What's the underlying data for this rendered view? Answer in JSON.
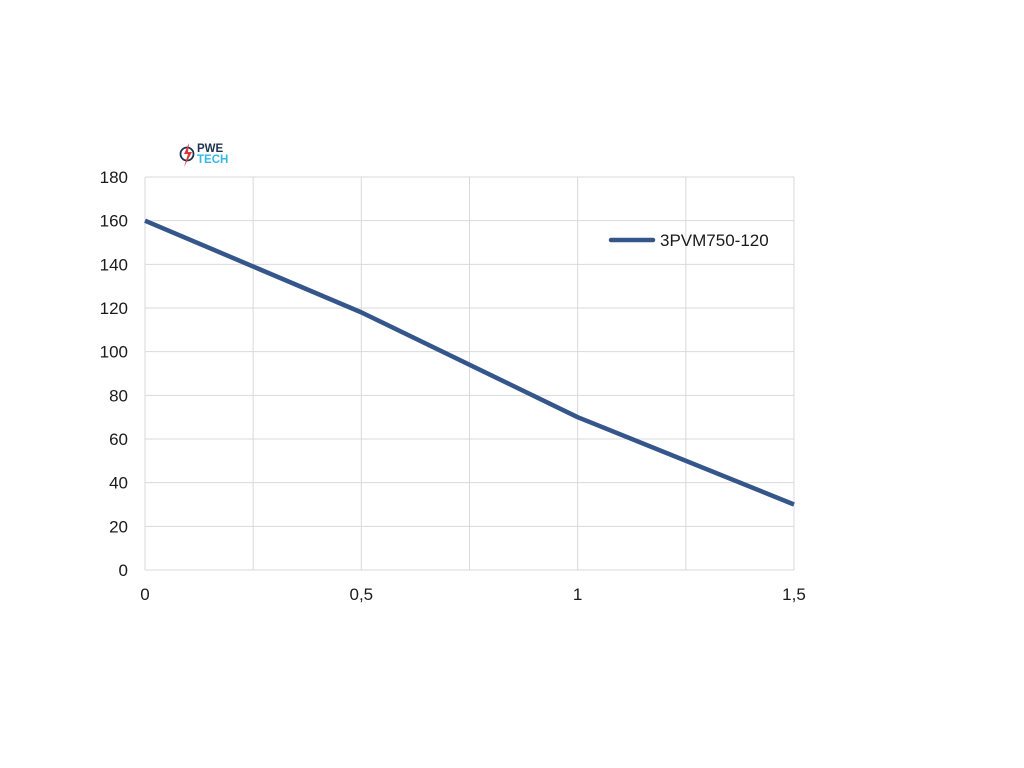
{
  "logo": {
    "line1": "PWE",
    "line2": "TECH"
  },
  "colors": {
    "series": "#34568b",
    "grid": "#d9d9d9",
    "logo_dark": "#1f3350",
    "logo_light": "#35b7e8",
    "logo_red": "#d9393b"
  },
  "chart_data": {
    "type": "line",
    "title": "",
    "xlabel": "",
    "ylabel": "",
    "x": [
      0,
      0.5,
      1,
      1.5
    ],
    "x_tick_labels": [
      "0",
      "0,5",
      "1",
      "1,5"
    ],
    "xlim": [
      0,
      1.5
    ],
    "ylim": [
      0,
      180
    ],
    "y_ticks": [
      0,
      20,
      40,
      60,
      80,
      100,
      120,
      140,
      160,
      180
    ],
    "y_tick_labels": [
      "0",
      "20",
      "40",
      "60",
      "80",
      "100",
      "120",
      "140",
      "160",
      "180"
    ],
    "grid": true,
    "legend_position": "top-right",
    "series": [
      {
        "name": "3PVM750-120",
        "values": [
          160,
          118,
          70,
          30
        ]
      }
    ]
  }
}
